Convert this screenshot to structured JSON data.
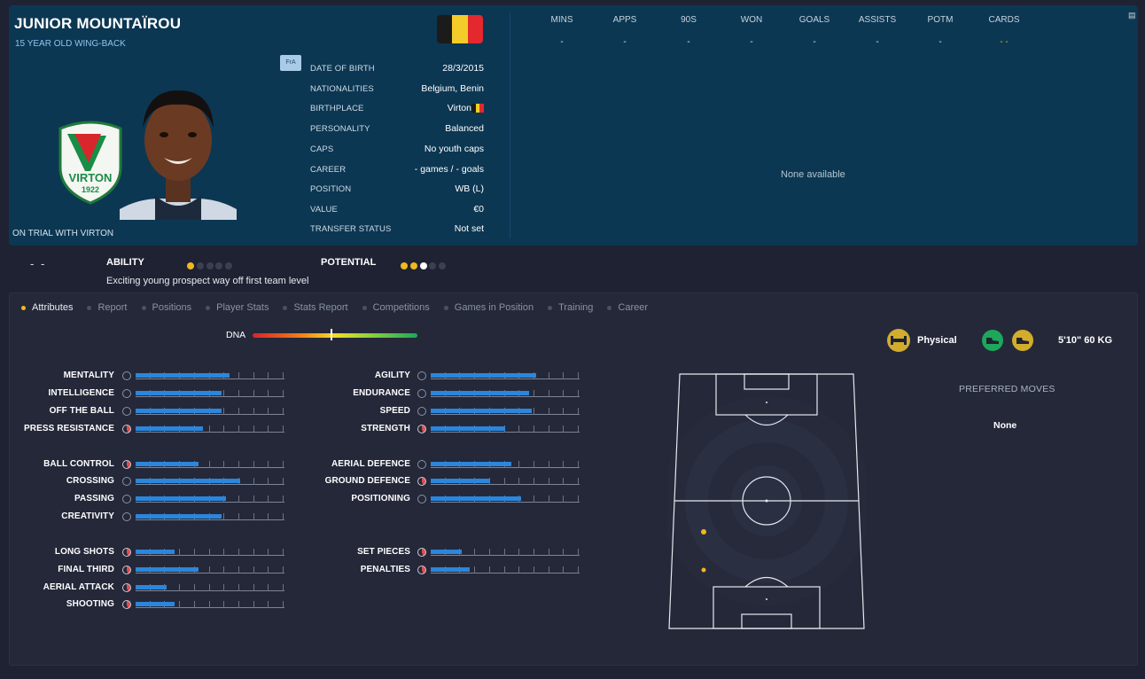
{
  "player": {
    "name": "JUNIOR MOUNTAÏROU",
    "subtitle": "15 YEAR OLD WING-BACK",
    "trial_text": "ON TRIAL WITH VIRTON",
    "club_crest_text": "VIRTON",
    "club_crest_year": "1922",
    "flag_colors": [
      "#1b1b1b",
      "#f3cc2a",
      "#e3282e"
    ],
    "fra_badge": "FrA"
  },
  "info": [
    {
      "label": "DATE OF BIRTH",
      "value": "28/3/2015"
    },
    {
      "label": "NATIONALITIES",
      "value": "Belgium, Benin"
    },
    {
      "label": "BIRTHPLACE",
      "value": "Virton"
    },
    {
      "label": "PERSONALITY",
      "value": "Balanced"
    },
    {
      "label": "CAPS",
      "value": "No youth caps"
    },
    {
      "label": "CAREER",
      "value": "- games /     -  goals"
    },
    {
      "label": "POSITION",
      "value": "WB (L)"
    },
    {
      "label": "VALUE",
      "value": "€0"
    },
    {
      "label": "TRANSFER STATUS",
      "value": "Not set"
    }
  ],
  "stats": {
    "headers": [
      "MINS",
      "APPS",
      "90S",
      "WON",
      "GOALS",
      "ASSISTS",
      "POTM",
      "CARDS"
    ],
    "values": [
      "-",
      "-",
      "-",
      "-",
      "-",
      "-",
      "-",
      "- -"
    ],
    "none_available": "None available"
  },
  "ability": {
    "dash": "- -",
    "ability_label": "ABILITY",
    "ability_stars": 1,
    "potential_label": "POTENTIAL",
    "potential_stars": 2.5,
    "description": "Exciting young prospect way off first team level"
  },
  "tabs": [
    "Attributes",
    "Report",
    "Positions",
    "Player Stats",
    "Stats Report",
    "Competitions",
    "Games in Position",
    "Training",
    "Career"
  ],
  "active_tab": "Attributes",
  "dna": {
    "label": "DNA",
    "marker": 0.48
  },
  "attributes": {
    "left": [
      {
        "name": "MENTALITY",
        "value": 0.63,
        "red": false
      },
      {
        "name": "INTELLIGENCE",
        "value": 0.58,
        "red": false
      },
      {
        "name": "OFF THE BALL",
        "value": 0.58,
        "red": false
      },
      {
        "name": "PRESS RESISTANCE",
        "value": 0.45,
        "red": true
      },
      {
        "name": "BALL CONTROL",
        "value": 0.42,
        "red": true
      },
      {
        "name": "CROSSING",
        "value": 0.7,
        "red": false
      },
      {
        "name": "PASSING",
        "value": 0.61,
        "red": false
      },
      {
        "name": "CREATIVITY",
        "value": 0.58,
        "red": false
      },
      {
        "name": "LONG SHOTS",
        "value": 0.26,
        "red": true
      },
      {
        "name": "FINAL THIRD",
        "value": 0.42,
        "red": true
      },
      {
        "name": "AERIAL ATTACK",
        "value": 0.21,
        "red": true
      },
      {
        "name": "SHOOTING",
        "value": 0.26,
        "red": true
      }
    ],
    "right": [
      {
        "name": "AGILITY",
        "value": 0.71,
        "red": false
      },
      {
        "name": "ENDURANCE",
        "value": 0.66,
        "red": false
      },
      {
        "name": "SPEED",
        "value": 0.68,
        "red": false
      },
      {
        "name": "STRENGTH",
        "value": 0.5,
        "red": true
      },
      {
        "name": "AERIAL DEFENCE",
        "value": 0.54,
        "red": false
      },
      {
        "name": "GROUND DEFENCE",
        "value": 0.4,
        "red": true
      },
      {
        "name": "POSITIONING",
        "value": 0.61,
        "red": false
      },
      {
        "name": "SET PIECES",
        "value": 0.21,
        "red": true
      },
      {
        "name": "PENALTIES",
        "value": 0.26,
        "red": true
      }
    ]
  },
  "physical": {
    "label": "Physical",
    "height_weight": "5'10\"   60 KG"
  },
  "preferred_moves": {
    "title": "PREFERRED MOVES",
    "value": "None"
  }
}
